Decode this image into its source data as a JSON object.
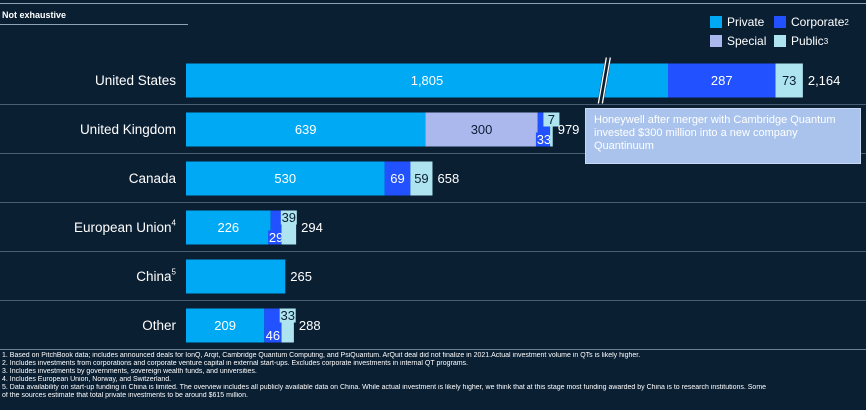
{
  "tag": "Not exhaustive",
  "legend": {
    "private": {
      "label": "Private",
      "sup": ""
    },
    "corporate": {
      "label": "Corporate",
      "sup": "2"
    },
    "special": {
      "label": "Special",
      "sup": ""
    },
    "public": {
      "label": "Public",
      "sup": "3"
    }
  },
  "colors": {
    "background": "#0b1f33",
    "private": "#00a9f4",
    "corporate": "#2251ff",
    "special": "#aab8ee",
    "public": "#aee4f0"
  },
  "callout": "Honeywell after merger with Cambridge Quantum invested $300 million into a new company Quantinuum",
  "chart_data": {
    "type": "bar",
    "orientation": "horizontal",
    "stacked": true,
    "axis_break": {
      "category": "United States",
      "position": "within Private segment"
    },
    "categories": [
      "United States",
      "United Kingdom",
      "Canada",
      "European Union",
      "China",
      "Other"
    ],
    "category_sups": [
      "",
      "",
      "",
      "4",
      "5",
      ""
    ],
    "series": [
      {
        "name": "Private",
        "values": [
          1805,
          639,
          530,
          226,
          265,
          209
        ]
      },
      {
        "name": "Special",
        "values": [
          0,
          300,
          0,
          0,
          0,
          0
        ]
      },
      {
        "name": "Corporate",
        "values": [
          287,
          33,
          69,
          29,
          0,
          46
        ]
      },
      {
        "name": "Public",
        "values": [
          73,
          7,
          59,
          39,
          0,
          33
        ]
      }
    ],
    "totals": [
      "2,164",
      "979",
      "658",
      "294",
      "265",
      "288"
    ],
    "segment_labels": [
      [
        "1,805",
        "",
        "287",
        "73"
      ],
      [
        "639",
        "300",
        "33",
        "7"
      ],
      [
        "530",
        "",
        "69",
        "59"
      ],
      [
        "226",
        "",
        "29",
        "39"
      ],
      [
        "",
        "",
        "",
        ""
      ],
      [
        "209",
        "",
        "46",
        "33"
      ]
    ]
  },
  "footnotes": [
    "1. Based on PitchBook data; includes announced deals for IonQ, Arqit, Cambridge Quantum Computing, and PsiQuantum. ArQuit deal did not finalize in 2021.Actual investment volume in QTs is likely higher.",
    "2. Includes investments from corporations and corporate venture capital in external start-ups. Excludes corporate investments in internal QT programs.",
    "3. Includes investments by governments, sovereign wealth funds, and universities.",
    "4. Includes European Union, Norway, and Switzerland.",
    "5. Data availability on start-up funding in China is limited. The overview includes all publicly available data on China. While actual investment is likely higher, we think that at this stage most funding awarded by China is to research institutions. Some",
    "of the sources estimate that total private investments to be around $615 million."
  ]
}
